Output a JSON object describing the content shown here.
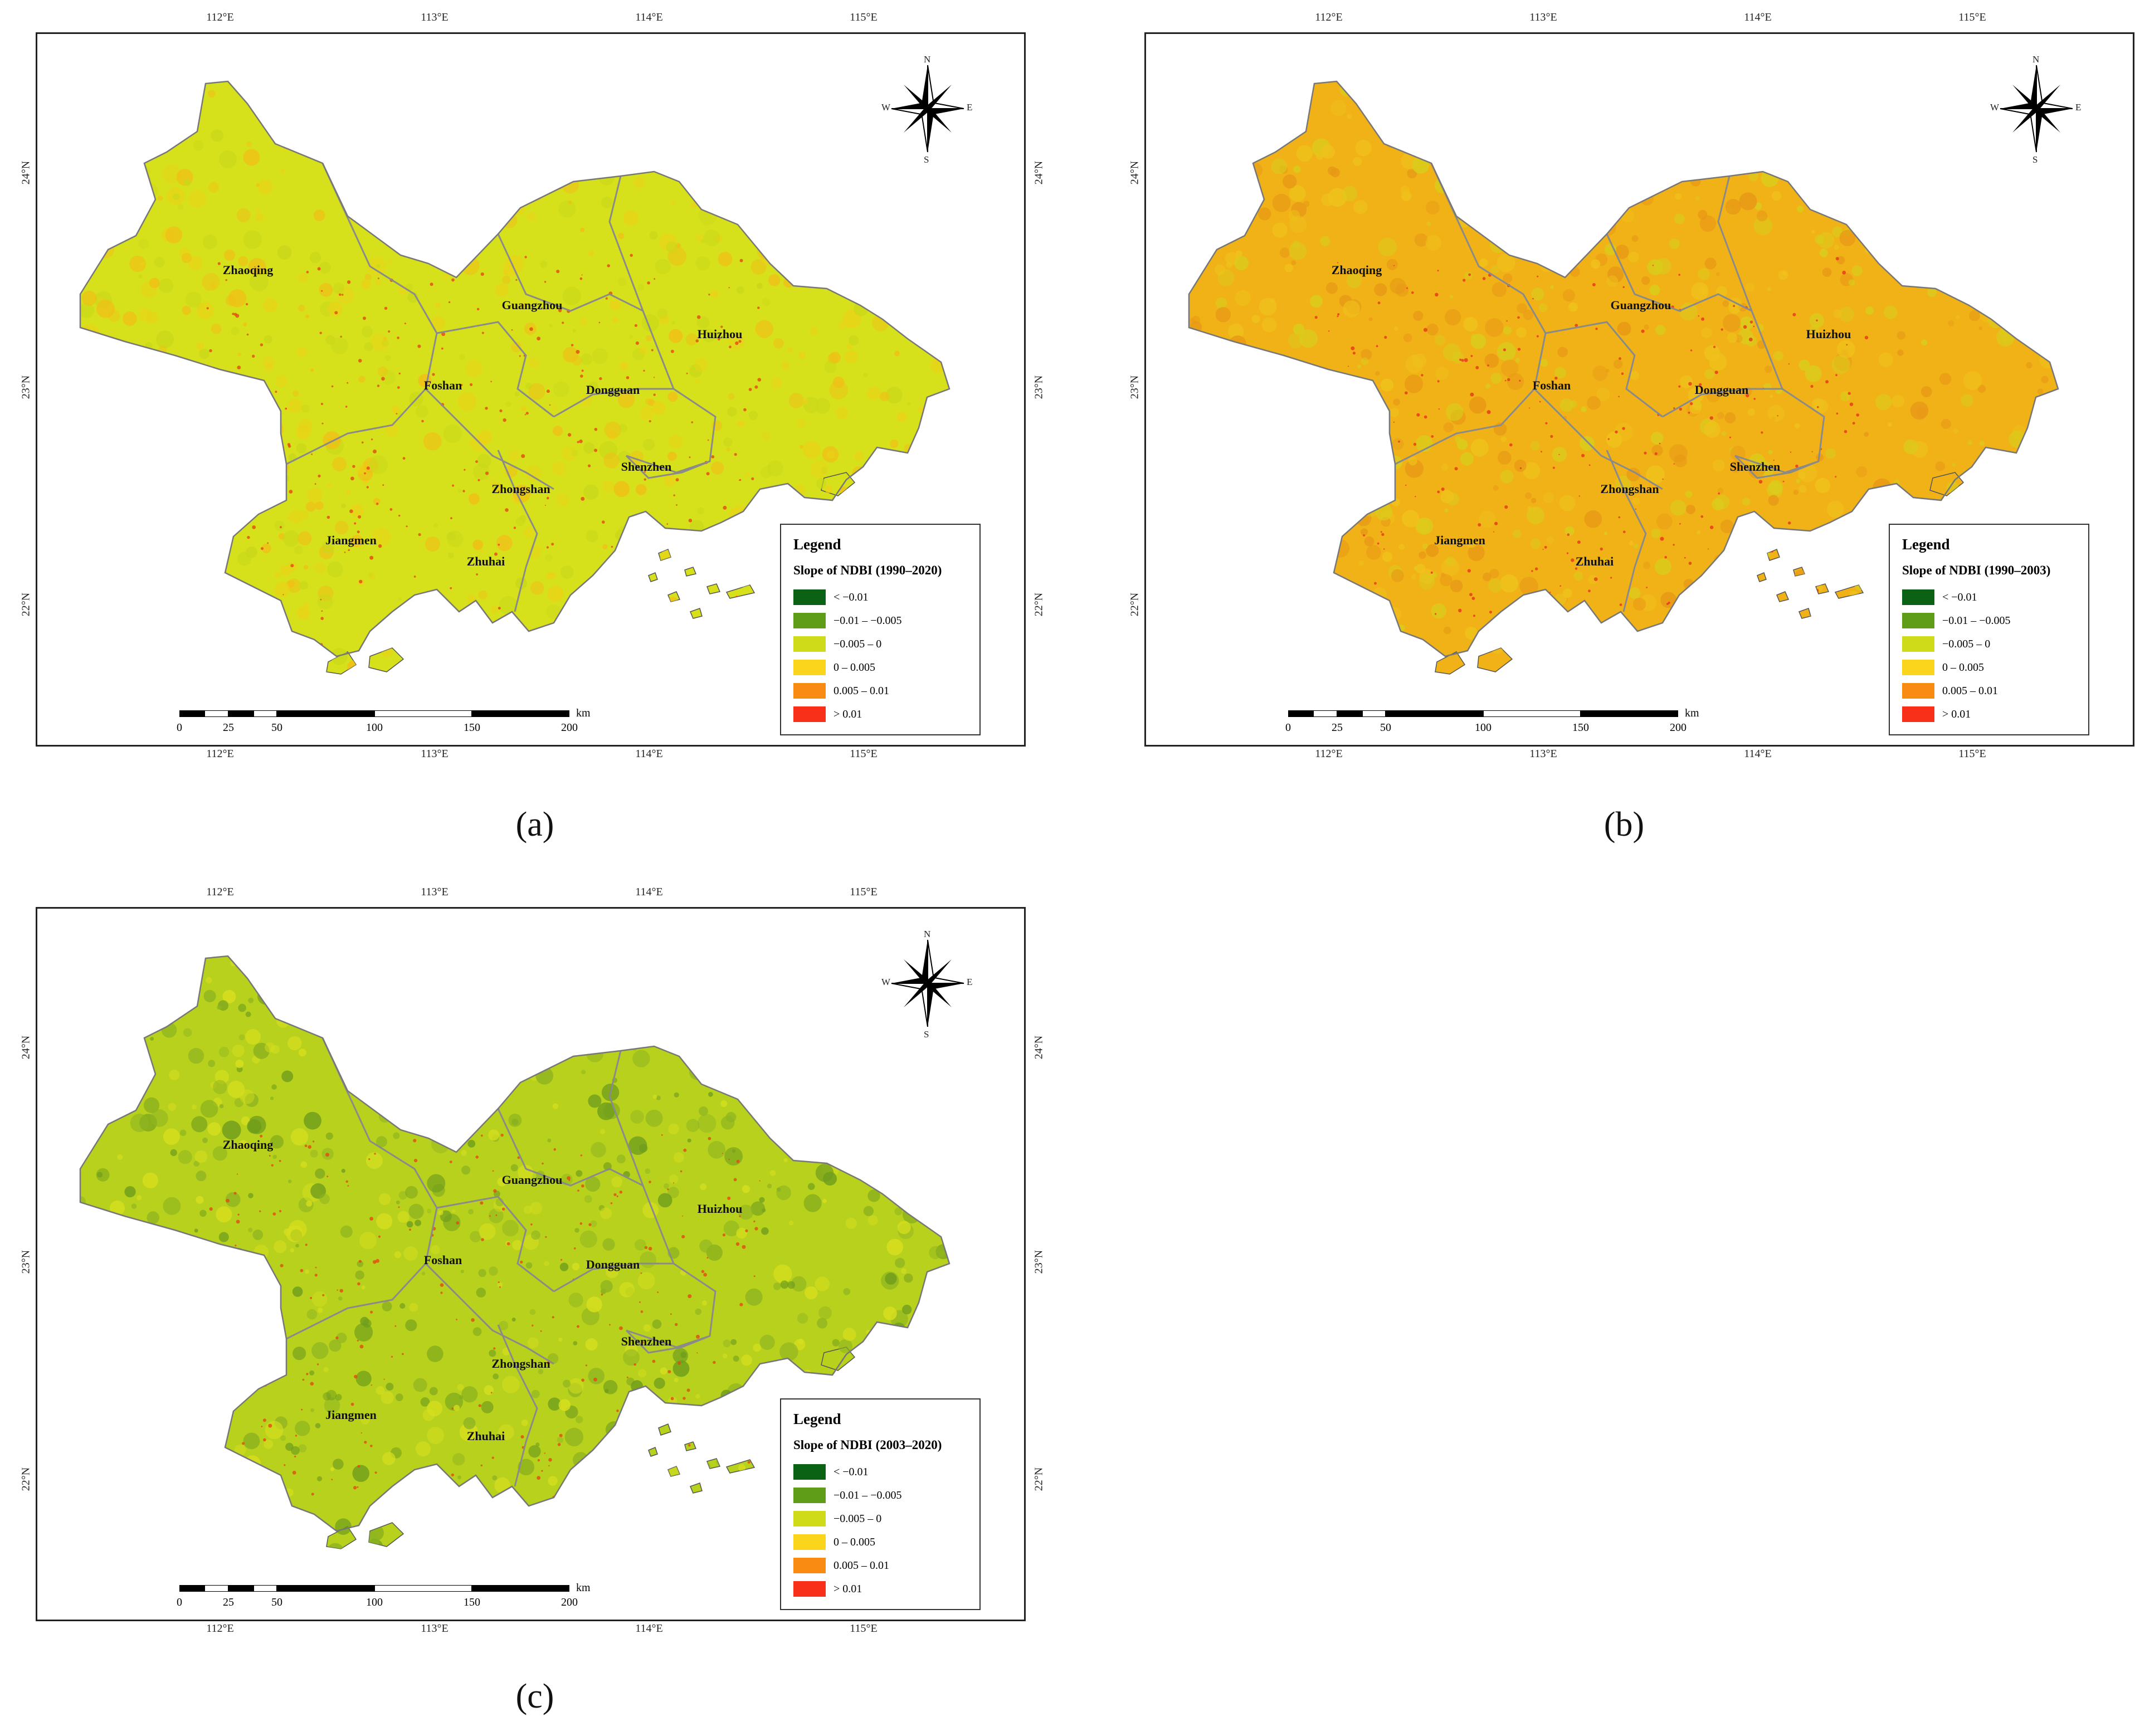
{
  "panels": [
    {
      "label": "(a)",
      "legend_title": "Legend",
      "legend_subtitle": "Slope of NDBI (1990–2020)",
      "palette": [
        "#d7e11b",
        "#e9d317",
        "#c9d81a",
        "#f0bf17"
      ],
      "speck": "#e34a12"
    },
    {
      "label": "(b)",
      "legend_title": "Legend",
      "legend_subtitle": "Slope of NDBI (1990–2003)",
      "palette": [
        "#f0b217",
        "#e89816",
        "#d9cd1c",
        "#efc21b"
      ],
      "speck": "#e7351a"
    },
    {
      "label": "(c)",
      "legend_title": "Legend",
      "legend_subtitle": "Slope of NDBI (2003–2020)",
      "palette": [
        "#b8d11d",
        "#8fb520",
        "#d7df1e",
        "#6f9e1c"
      ],
      "speck": "#e34a12"
    }
  ],
  "legend_classes": [
    {
      "label": "< −0.01",
      "color": "#0b6114"
    },
    {
      "label": "−0.01 – −0.005",
      "color": "#5f9c17"
    },
    {
      "label": "−0.005 – 0",
      "color": "#cfdb18"
    },
    {
      "label": "0 – 0.005",
      "color": "#fad51b"
    },
    {
      "label": "0.005 – 0.01",
      "color": "#f98a12"
    },
    {
      "label": "> 0.01",
      "color": "#f8301a"
    }
  ],
  "lon_labels": [
    "112°E",
    "113°E",
    "114°E",
    "115°E"
  ],
  "lat_labels": [
    "24°N",
    "23°N",
    "22°N"
  ],
  "cities": [
    "Zhaoqing",
    "Guangzhou",
    "Huizhou",
    "Foshan",
    "Dongguan",
    "Shenzhen",
    "Zhongshan",
    "Jiangmen",
    "Zhuhai"
  ],
  "compass": {
    "n": "N",
    "s": "S",
    "e": "E",
    "w": "W"
  },
  "scale": {
    "ticks": [
      "0",
      "25",
      "50",
      "100",
      "150",
      "200"
    ],
    "unit": "km"
  }
}
